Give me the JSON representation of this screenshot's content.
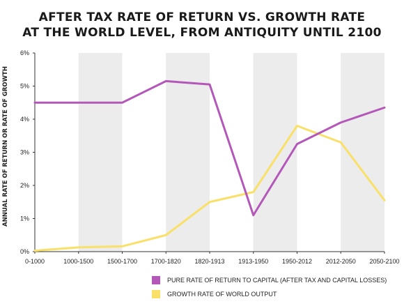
{
  "title_line1": "AFTER TAX RATE OF RETURN VS. GROWTH RATE",
  "title_line2": "AT THE WORLD LEVEL, FROM ANTIQUITY UNTIL 2100",
  "colors": {
    "series_return": "#b358b9",
    "series_growth": "#f9e069",
    "band": "#ececec",
    "axis": "#333333"
  },
  "chart_data": {
    "type": "line",
    "title": "AFTER TAX RATE OF RETURN VS. GROWTH RATE AT THE WORLD LEVEL, FROM ANTIQUITY UNTIL 2100",
    "xlabel": "",
    "ylabel": "ANNUAL RATE OF RETURN OR RATE OF GROWTH",
    "categories": [
      "0-1000",
      "1000-1500",
      "1500-1700",
      "1700-1820",
      "1820-1913",
      "1913-1950",
      "1950-2012",
      "2012-2050",
      "2050-2100"
    ],
    "ylim": [
      0,
      6
    ],
    "yticks": [
      "0%",
      "1%",
      "2%",
      "3%",
      "4%",
      "5%",
      "6%"
    ],
    "grid": false,
    "shaded_bands": true,
    "legend_position": "bottom-right",
    "series": [
      {
        "name": "PURE RATE OF RETURN TO CAPITAL (AFTER TAX AND CAPITAL LOSSES)",
        "values": [
          4.5,
          4.5,
          4.5,
          5.15,
          5.05,
          1.1,
          3.25,
          3.9,
          4.35
        ]
      },
      {
        "name": "GROWTH RATE OF WORLD OUTPUT",
        "values": [
          0.03,
          0.13,
          0.16,
          0.5,
          1.5,
          1.8,
          3.8,
          3.3,
          1.55
        ]
      }
    ]
  }
}
